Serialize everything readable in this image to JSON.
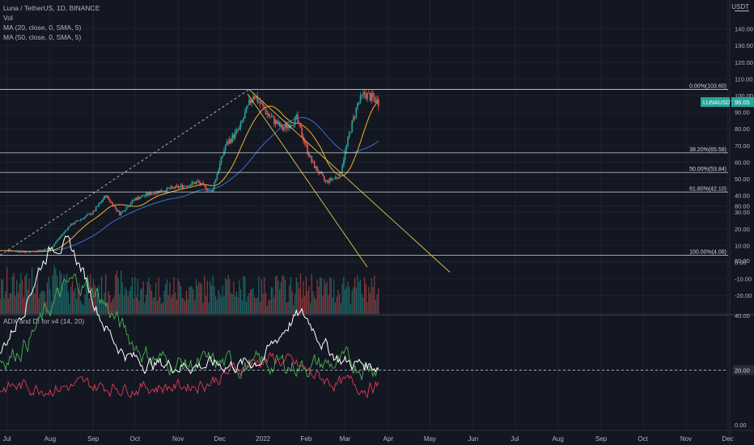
{
  "header": {
    "symbol_line": "Luna / TetherUS, 1D, BINANCE",
    "vol_label": "Vol",
    "ma20_label": "MA (20, close, 0, SMA, 5)",
    "ma50_label": "MA (50, close, 0, SMA, 5)",
    "indicator_label": "ADX and DI for v4 (14, 20)",
    "price_unit": "USDT"
  },
  "price_label": {
    "text": "LUNAUSDT",
    "value": "96.05"
  },
  "colors": {
    "background": "#131722",
    "up": "#26a69a",
    "down": "#ef5350",
    "ma20": "#f0b429",
    "ma50": "#3d6fd6",
    "fib": "#d1d4dc",
    "trend": "#e8c547",
    "adx": "#ffffff",
    "di_plus": "#4caf50",
    "di_minus": "#e53950",
    "price_badge": "#26a69a"
  },
  "chart_data": [
    {
      "type": "candlestick",
      "title": "Luna / TetherUS, 1D, BINANCE",
      "x_tick_labels": [
        "Jul",
        "Aug",
        "Sep",
        "Oct",
        "Nov",
        "Dec",
        "2022",
        "Feb",
        "Mar",
        "Apr",
        "May",
        "Jun",
        "Jul",
        "Aug",
        "Sep",
        "Oct",
        "Nov",
        "Dec"
      ],
      "y_tick_labels": [
        "140.00",
        "130.00",
        "120.00",
        "110.00",
        "100.00",
        "90.00",
        "80.00",
        "70.00",
        "60.00",
        "50.00",
        "40.00",
        "30.00",
        "20.00",
        "10.00",
        "0.00",
        "-10.00",
        "-20.00",
        "-30.00"
      ],
      "ylim": [
        -30,
        140
      ],
      "fib_levels": [
        {
          "label": "0.00%(103.60)",
          "value": 103.6
        },
        {
          "label": "38.20%(65.58)",
          "value": 65.58
        },
        {
          "label": "50.00%(53.84)",
          "value": 53.84
        },
        {
          "label": "61.80%(42.10)",
          "value": 42.1
        },
        {
          "label": "100.00%(4.08)",
          "value": 4.08
        }
      ],
      "close_approx": [
        {
          "date": "2021-07-01",
          "close": 7
        },
        {
          "date": "2021-07-15",
          "close": 6
        },
        {
          "date": "2021-08-01",
          "close": 8
        },
        {
          "date": "2021-08-15",
          "close": 22
        },
        {
          "date": "2021-09-01",
          "close": 30
        },
        {
          "date": "2021-09-10",
          "close": 40
        },
        {
          "date": "2021-09-20",
          "close": 29
        },
        {
          "date": "2021-10-01",
          "close": 38
        },
        {
          "date": "2021-10-15",
          "close": 42
        },
        {
          "date": "2021-11-01",
          "close": 45
        },
        {
          "date": "2021-11-15",
          "close": 48
        },
        {
          "date": "2021-11-25",
          "close": 42
        },
        {
          "date": "2021-12-05",
          "close": 70
        },
        {
          "date": "2021-12-15",
          "close": 80
        },
        {
          "date": "2021-12-25",
          "close": 101
        },
        {
          "date": "2022-01-05",
          "close": 88
        },
        {
          "date": "2022-01-15",
          "close": 80
        },
        {
          "date": "2022-01-25",
          "close": 86
        },
        {
          "date": "2022-02-05",
          "close": 60
        },
        {
          "date": "2022-02-15",
          "close": 48
        },
        {
          "date": "2022-02-25",
          "close": 52
        },
        {
          "date": "2022-03-05",
          "close": 80
        },
        {
          "date": "2022-03-10",
          "close": 95
        },
        {
          "date": "2022-03-15",
          "close": 101
        },
        {
          "date": "2022-03-25",
          "close": 96.05
        }
      ],
      "series": [
        {
          "name": "MA (20, close, 0, SMA, 5)"
        },
        {
          "name": "MA (50, close, 0, SMA, 5)"
        }
      ],
      "last_price": 96.05,
      "grid": true
    },
    {
      "type": "line",
      "title": "ADX and DI for v4 (14, 20)",
      "y_tick_labels": [
        "80.00",
        "60.00",
        "40.00",
        "20.00",
        "0.00"
      ],
      "ylim": [
        -5,
        85
      ],
      "threshold": 20,
      "threshold_label": "20.00"
    }
  ]
}
